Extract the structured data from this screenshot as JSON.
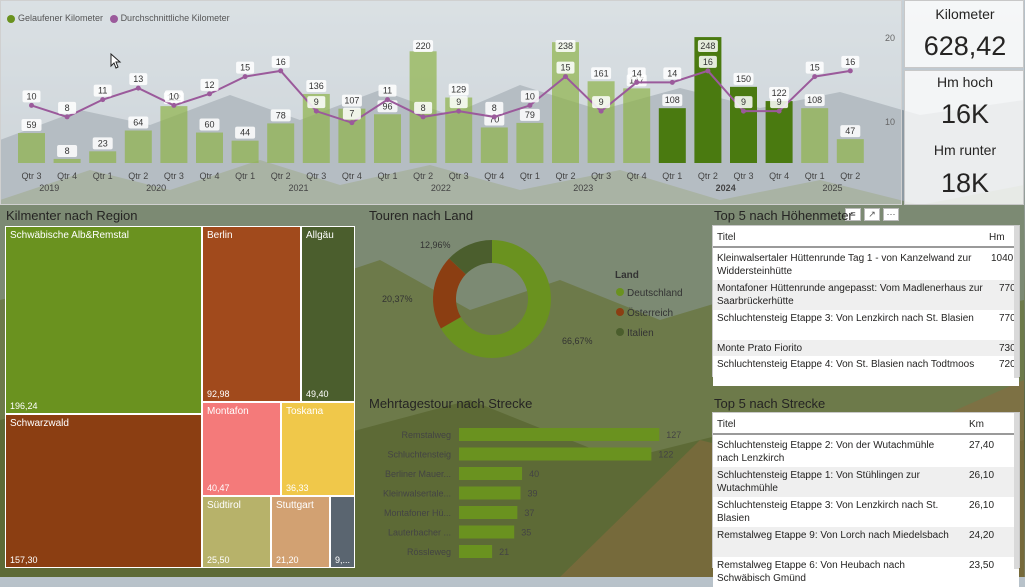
{
  "colors": {
    "green": "#6a921f",
    "green_dark": "#4a7a10",
    "green_light": "#8fb34a",
    "brown": "#8b3e12",
    "orange_brown": "#a14a1c",
    "olive": "#4b5e2d",
    "pink": "#f47a7a",
    "yellow": "#f0c84a",
    "khaki": "#b7b26a",
    "tan": "#d2a172",
    "slate": "#5a6570",
    "purple": "#9b5a9b"
  },
  "cards": {
    "km_label": "Kilometer",
    "km_value": "628,42",
    "hm_up_label": "Hm hoch",
    "hm_up_value": "16K",
    "hm_down_label": "Hm runter",
    "hm_down_value": "18K"
  },
  "chart_data": [
    {
      "type": "bar",
      "title": "",
      "legend": [
        "Gelaufener Kilometer",
        "Durchschnittliche Kilometer"
      ],
      "categories": [
        "Qtr 3",
        "Qtr 4",
        "Qtr 1",
        "Qtr 2",
        "Qtr 3",
        "Qtr 4",
        "Qtr 1",
        "Qtr 2",
        "Qtr 3",
        "Qtr 4",
        "Qtr 1",
        "Qtr 2",
        "Qtr 3",
        "Qtr 4",
        "Qtr 1",
        "Qtr 2",
        "Qtr 3",
        "Qtr 4",
        "Qtr 1",
        "Qtr 2",
        "Qtr 3",
        "Qtr 4",
        "Qtr 1",
        "Qtr 2"
      ],
      "years": [
        {
          "label": "2019",
          "start": 0,
          "end": 1
        },
        {
          "label": "2020",
          "start": 2,
          "end": 5
        },
        {
          "label": "2021",
          "start": 6,
          "end": 9
        },
        {
          "label": "2022",
          "start": 10,
          "end": 13
        },
        {
          "label": "2023",
          "start": 14,
          "end": 17
        },
        {
          "label": "2024",
          "start": 18,
          "end": 21
        },
        {
          "label": "2025",
          "start": 22,
          "end": 23
        }
      ],
      "highlight_year": "2024",
      "highlight_range": [
        18,
        21
      ],
      "series": [
        {
          "name": "Gelaufener Kilometer",
          "values": [
            59,
            8,
            23,
            64,
            112,
            60,
            44,
            78,
            136,
            107,
            96,
            220,
            129,
            70,
            79,
            238,
            161,
            147,
            108,
            248,
            150,
            122,
            108,
            47
          ]
        },
        {
          "name": "Durchschnittliche Kilometer",
          "values": [
            10,
            8,
            11,
            13,
            10,
            12,
            15,
            16,
            9,
            7,
            11,
            8,
            9,
            8,
            10,
            15,
            9,
            14,
            14,
            16,
            9,
            9,
            15,
            16
          ]
        }
      ],
      "y_right_ticks": [
        "20",
        "10"
      ],
      "y_right_range": [
        0,
        22
      ],
      "ylim": [
        0,
        300
      ]
    },
    {
      "type": "pie",
      "title": "Touren nach Land",
      "legend_title": "Land",
      "categories": [
        "Deutschland",
        "Österreich",
        "Italien"
      ],
      "values": [
        66.67,
        20.37,
        12.96
      ],
      "labels": [
        "66,67%",
        "20,37%",
        "12,96%"
      ]
    },
    {
      "type": "bar",
      "title": "Mehrtagestour nach Strecke",
      "categories": [
        "Remstalweg",
        "Schluchtensteig",
        "Berliner Mauer...",
        "Kleinwalsertale...",
        "Montafoner Hü...",
        "Lauterbacher ...",
        "Rössleweg"
      ],
      "values": [
        127,
        122,
        40,
        39,
        37,
        35,
        21
      ],
      "xlim": [
        0,
        130
      ]
    }
  ],
  "treemap": {
    "title": "Kilmenter nach Region",
    "cells": [
      {
        "name": "Schwäbische Alb&Remstal",
        "value": "196,24"
      },
      {
        "name": "Schwarzwald",
        "value": "157,30"
      },
      {
        "name": "Berlin",
        "value": "92,98"
      },
      {
        "name": "Allgäu",
        "value": "49,40"
      },
      {
        "name": "Montafon",
        "value": "40,47"
      },
      {
        "name": "Toskana",
        "value": "36,33"
      },
      {
        "name": "Südtirol",
        "value": "25,50"
      },
      {
        "name": "Stuttgart",
        "value": "21,20"
      },
      {
        "name": "",
        "value": "9,..."
      }
    ]
  },
  "top_hm": {
    "title": "Top 5 nach Höhenmeter",
    "col_title": "Titel",
    "col_val": "Hm",
    "rows": [
      {
        "title": "Kleinwalsertaler Hüttenrunde Tag 1 - von Kanzelwand zur Widdersteinhütte",
        "val": "1040"
      },
      {
        "title": "Montafoner Hüttenrunde angepasst: Vom Madlenerhaus zur Saarbrückerhütte",
        "val": "770"
      },
      {
        "title": "Schluchtensteig Etappe 3: Von Lenzkirch nach St. Blasien",
        "val": "770"
      },
      {
        "title": "Monte Prato Fiorito",
        "val": "730"
      },
      {
        "title": "Schluchtensteig Etappe 4: Von St. Blasien nach Todtmoos",
        "val": "720"
      }
    ]
  },
  "top_km": {
    "title": "Top 5 nach Strecke",
    "col_title": "Titel",
    "col_val": "Km",
    "rows": [
      {
        "title": "Schluchtensteig Etappe 2: Von der Wutachmühle nach Lenzkirch",
        "val": "27,40"
      },
      {
        "title": "Schluchtensteig Etappe 1: Von Stühlingen zur Wutachmühle",
        "val": "26,10"
      },
      {
        "title": "Schluchtensteig Etappe 3: Von Lenzkirch nach St. Blasien",
        "val": "26,10"
      },
      {
        "title": "Remstalweg Etappe 9: Von Lorch nach Miedelsbach",
        "val": "24,20"
      },
      {
        "title": "Remstalweg Etappe 6: Von Heubach nach Schwäbisch Gmünd",
        "val": "23,50"
      }
    ]
  },
  "icons": {
    "filter": "filter-icon",
    "focus": "focus-mode-icon",
    "more": "more-options-icon"
  }
}
